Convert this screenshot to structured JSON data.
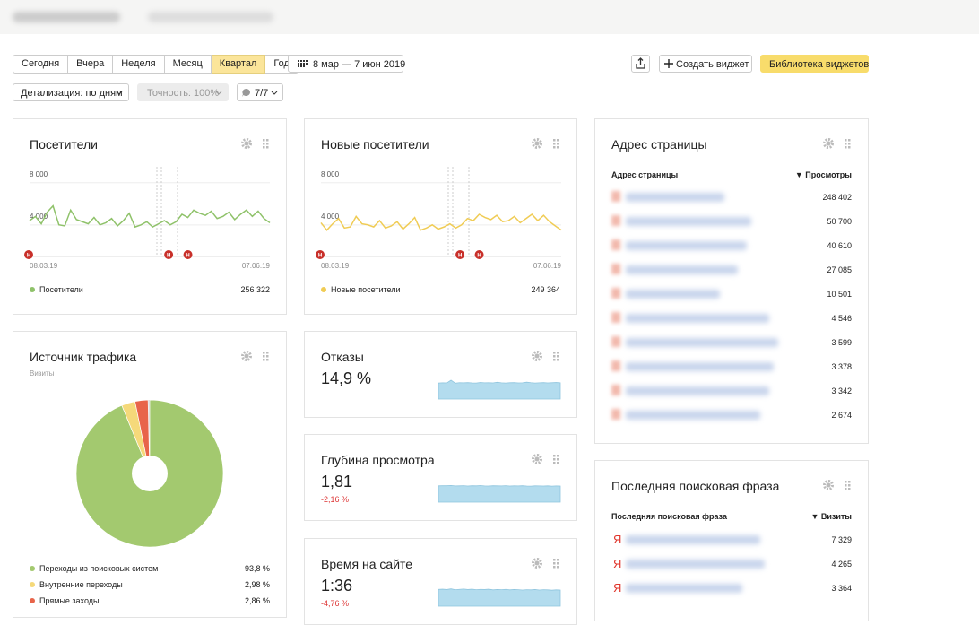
{
  "toolbar": {
    "periods": [
      "Сегодня",
      "Вчера",
      "Неделя",
      "Месяц",
      "Квартал",
      "Год"
    ],
    "active_period": "Квартал",
    "date_range": "8 мар — 7 июн 2019",
    "create_widget": "Создать виджет",
    "library": "Библиотека виджетов",
    "detail": "Детализация: по дням",
    "accuracy": "Точность: 100%",
    "segments": "7/7"
  },
  "widgets": {
    "visitors": {
      "title": "Посетители",
      "ylim": [
        0,
        9000
      ],
      "yticks": [
        {
          "value": 4000,
          "label": "4 000"
        },
        {
          "value": 8000,
          "label": "8 000"
        }
      ],
      "x_start": "08.03.19",
      "x_end": "07.06.19",
      "annotations": [
        "Н",
        "Н",
        "Н"
      ],
      "series_name": "Посетители",
      "color": "#8fc26a",
      "total": "256 322",
      "values": [
        3900,
        4300,
        3600,
        4700,
        5300,
        3500,
        3400,
        4900,
        4000,
        3800,
        3600,
        4200,
        3500,
        3700,
        4100,
        3400,
        3900,
        4600,
        3300,
        3500,
        3800,
        3300,
        3600,
        3900,
        3500,
        3800,
        4500,
        4200,
        4900,
        4600,
        4400,
        4800,
        4100,
        4300,
        4700,
        4000,
        4500,
        4900,
        4300,
        4800,
        4100,
        3700
      ]
    },
    "new_visitors": {
      "title": "Новые посетители",
      "ylim": [
        0,
        9000
      ],
      "yticks": [
        {
          "value": 4000,
          "label": "4 000"
        },
        {
          "value": 8000,
          "label": "8 000"
        }
      ],
      "x_start": "08.03.19",
      "x_end": "07.06.19",
      "annotations": [
        "Н",
        "Н",
        "Н"
      ],
      "series_name": "Новые посетители",
      "color": "#f0cc55",
      "total": "249 364",
      "values": [
        3700,
        3000,
        3600,
        4100,
        3200,
        3300,
        4300,
        3600,
        3500,
        3300,
        3900,
        3200,
        3400,
        3800,
        3100,
        3600,
        4200,
        3000,
        3200,
        3500,
        3100,
        3300,
        3600,
        3200,
        3500,
        4100,
        3900,
        4500,
        4200,
        4000,
        4400,
        3800,
        3900,
        4300,
        3700,
        4100,
        4500,
        3900,
        4400,
        3800,
        3400,
        3000
      ]
    },
    "traffic": {
      "title": "Источник трафика",
      "subtitle": "Визиты",
      "categories": [
        "Переходы из поисковых систем",
        "Внутренние переходы",
        "Прямые заходы"
      ],
      "values": [
        93.8,
        2.98,
        2.86
      ],
      "value_labels": [
        "93,8 %",
        "2,98 %",
        "2,86 %"
      ],
      "colors": [
        "#a3c96f",
        "#f5d97a",
        "#e8644a"
      ]
    },
    "bounce": {
      "title": "Отказы",
      "value": "14,9 %",
      "ylim": [
        0,
        18
      ],
      "values": [
        14.6,
        14.8,
        14.7,
        17.2,
        14.5,
        14.9,
        14.8,
        15.0,
        14.7,
        14.6,
        15.1,
        14.8,
        14.9,
        14.7,
        15.3,
        14.8,
        14.6,
        14.9,
        15.0,
        14.7,
        14.8,
        15.4,
        14.9,
        14.6,
        14.8,
        15.0,
        14.7,
        14.9,
        15.1,
        14.8
      ]
    },
    "depth": {
      "title": "Глубина просмотра",
      "value": "1,81",
      "change": "-2,16 %",
      "ylim": [
        0,
        2.2
      ],
      "values": [
        1.82,
        1.84,
        1.83,
        1.86,
        1.81,
        1.82,
        1.84,
        1.8,
        1.83,
        1.82,
        1.85,
        1.81,
        1.8,
        1.83,
        1.82,
        1.81,
        1.84,
        1.8,
        1.82,
        1.81,
        1.83,
        1.8,
        1.79,
        1.82,
        1.81,
        1.8,
        1.82,
        1.79,
        1.81,
        1.8
      ]
    },
    "time": {
      "title": "Время на сайте",
      "value": "1:36",
      "change": "-4,76 %",
      "ylim": [
        0,
        115
      ],
      "values": [
        98,
        99,
        97,
        101,
        96,
        98,
        100,
        97,
        99,
        96,
        98,
        97,
        99,
        95,
        97,
        96,
        98,
        95,
        97,
        96,
        94,
        96,
        95,
        97,
        94,
        96,
        95,
        93,
        95,
        94
      ]
    },
    "pages": {
      "title": "Адрес страницы",
      "col1": "Адрес страницы",
      "col2": "▼ Просмотры",
      "rows": [
        "248 402",
        "50 700",
        "40 610",
        "27 085",
        "10 501",
        "4 546",
        "3 599",
        "3 378",
        "3 342",
        "2 674"
      ]
    },
    "search": {
      "title": "Последняя поисковая фраза",
      "col1": "Последняя поисковая фраза",
      "col2": "▼ Визиты",
      "rows": [
        {
          "engine": "Я",
          "visits": "7 329"
        },
        {
          "engine": "Я",
          "visits": "4 265"
        },
        {
          "engine": "Я",
          "visits": "3 364"
        }
      ]
    }
  }
}
